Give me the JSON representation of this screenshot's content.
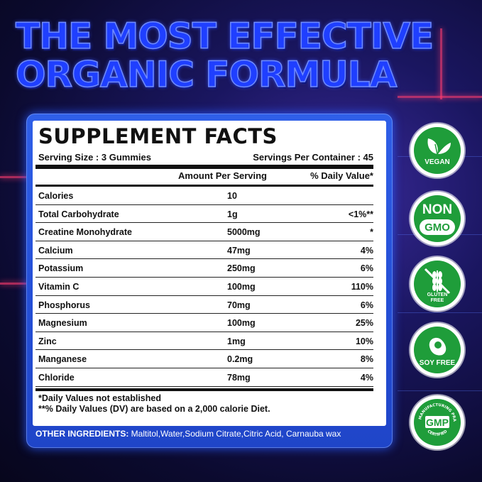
{
  "headline": {
    "line1": "THE MOST EFFECTIVE",
    "line2": "ORGANIC FORMULA"
  },
  "facts": {
    "title": "SUPPLEMENT FACTS",
    "serving_size": "Serving Size : 3 Gummies",
    "servings_per_container": "Servings Per Container : 45",
    "col_amount": "Amount Per Serving",
    "col_dv": "% Daily Value*",
    "rows": [
      {
        "name": "Calories",
        "amount": "10",
        "dv": ""
      },
      {
        "name": "Total Carbohydrate",
        "amount": "1g",
        "dv": "<1%**"
      },
      {
        "name": "Creatine Monohydrate",
        "amount": "5000mg",
        "dv": "*"
      },
      {
        "name": "Calcium",
        "amount": "47mg",
        "dv": "4%"
      },
      {
        "name": "Potassium",
        "amount": "250mg",
        "dv": "6%"
      },
      {
        "name": "Vitamin C",
        "amount": "100mg",
        "dv": "110%"
      },
      {
        "name": "Phosphorus",
        "amount": "70mg",
        "dv": "6%"
      },
      {
        "name": "Magnesium",
        "amount": "100mg",
        "dv": "25%"
      },
      {
        "name": "Zinc",
        "amount": "1mg",
        "dv": "10%"
      },
      {
        "name": "Manganese",
        "amount": "0.2mg",
        "dv": "8%"
      },
      {
        "name": "Chloride",
        "amount": "78mg",
        "dv": "4%"
      }
    ],
    "footnote1": "*Daily Values not established",
    "footnote2": "**% Daily Values (DV) are based on a 2,000 calorie Diet."
  },
  "ingredients": {
    "label": "OTHER INGREDIENTS:",
    "value": " Maltitol,Water,Sodium Citrate,Citric Acid, Carnauba wax"
  },
  "badges": {
    "vegan": "VEGAN",
    "non_gmo_line1": "NON",
    "non_gmo_line2": "GMO",
    "gluten_free_line1": "GLUTEN",
    "gluten_free_line2": "FREE",
    "soy_free": "SOY FREE",
    "gmp": "GMP",
    "gmp_ring_top": "GOOD MANUFACTURING PRACTICE",
    "gmp_ring_bottom": "CERTIFIED"
  },
  "colors": {
    "badge_green": "#1f9d3a",
    "panel_blue": "#2550d8",
    "headline_blue": "#1f3fff"
  }
}
